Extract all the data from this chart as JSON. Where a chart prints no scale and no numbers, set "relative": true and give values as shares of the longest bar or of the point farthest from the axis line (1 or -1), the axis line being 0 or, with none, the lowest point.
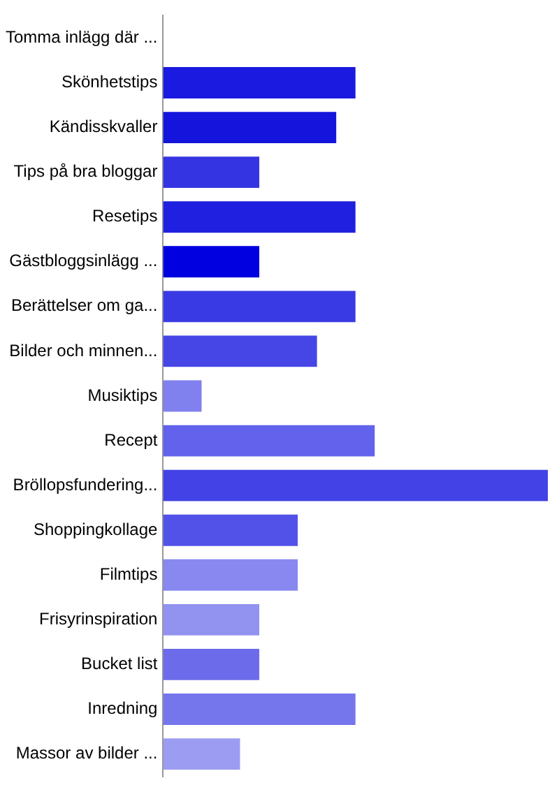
{
  "chart_data": {
    "type": "bar",
    "orientation": "horizontal",
    "relative": true,
    "grid": false,
    "legend": false,
    "categories": [
      "Tomma inlägg där ...",
      "Skönhetstips",
      "Kändisskvaller",
      "Tips på bra bloggar",
      "Resetips",
      "Gästbloggsinlägg ...",
      "Berättelser om ga...",
      "Bilder och minnen...",
      "Musiktips",
      "Recept",
      "Bröllopsfundering...",
      "Shoppingkollage",
      "Filmtips",
      "Frisyrinspiration",
      "Bucket list",
      "Inredning",
      "Massor av bilder ..."
    ],
    "values": [
      0,
      0.5,
      0.45,
      0.25,
      0.5,
      0.25,
      0.5,
      0.4,
      0.1,
      0.55,
      1,
      0.35,
      0.35,
      0.25,
      0.25,
      0.5,
      0.2
    ],
    "colors": [
      "#1a1ae0",
      "#1a1ae0",
      "#1414dc",
      "#3434e2",
      "#2020e0",
      "#0000e0",
      "#3a3ae4",
      "#4646e6",
      "#8080ee",
      "#6262ec",
      "#4242e6",
      "#5252e8",
      "#8888f0",
      "#9292f0",
      "#6c6cea",
      "#7676ec",
      "#9c9cf2"
    ]
  }
}
